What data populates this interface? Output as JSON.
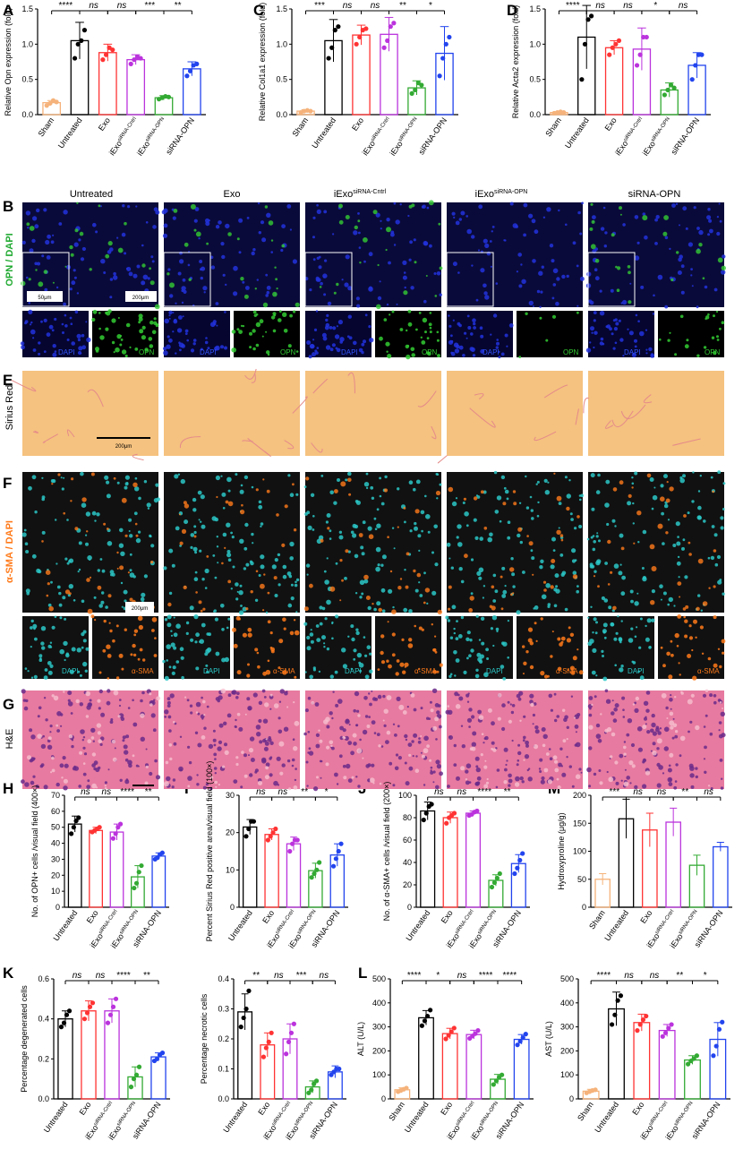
{
  "colors": {
    "sham": "#f5b27a",
    "untreated": "#000000",
    "exo": "#ff3333",
    "ictrl": "#bb33dd",
    "iopn": "#33aa33",
    "sirna": "#2244ee"
  },
  "letters": {
    "A": "A",
    "B": "B",
    "C": "C",
    "D": "D",
    "E": "E",
    "F": "F",
    "G": "G",
    "H": "H",
    "I": "I",
    "J": "J",
    "K": "K",
    "L": "L",
    "M": "M"
  },
  "images": {
    "columns": [
      "Untreated",
      "Exo",
      "iExo",
      "iExo",
      "siRNA-OPN"
    ],
    "column_sups": [
      "",
      "",
      "siRNA-Cntrl",
      "siRNA-OPN",
      ""
    ],
    "row_labels": {
      "B": "OPN / DAPI",
      "E": "Sirius Red",
      "F": "α-SMA / DAPI",
      "G": "H&E"
    },
    "small_labels_B": [
      "DAPI",
      "OPN"
    ],
    "small_labels_F": [
      "DAPI",
      "α-SMA"
    ],
    "scale_B_inset": "50μm",
    "scale_B": "200μm",
    "scale_E": "200μm",
    "scale_F": "200μm"
  },
  "chart_data": [
    {
      "id": "A",
      "type": "bar",
      "ylabel": "Relative Opn expression (fold)",
      "ylim": [
        0,
        1.5
      ],
      "yticks": [
        0.0,
        0.5,
        1.0,
        1.5
      ],
      "categories": [
        "Sham",
        "Untreated",
        "Exo",
        "iExo siRNA-Cntrl",
        "iExo siRNA-OPN",
        "siRNA-OPN"
      ],
      "values": [
        0.17,
        1.05,
        0.88,
        0.78,
        0.24,
        0.65
      ],
      "errors": [
        0.03,
        0.26,
        0.12,
        0.07,
        0.03,
        0.1
      ],
      "points": [
        [
          0.13,
          0.16,
          0.2,
          0.18
        ],
        [
          0.8,
          1.0,
          1.05,
          1.2
        ],
        [
          0.78,
          0.85,
          0.95,
          0.92
        ],
        [
          0.72,
          0.78,
          0.82,
          0.8
        ],
        [
          0.22,
          0.24,
          0.26,
          0.25
        ],
        [
          0.55,
          0.62,
          0.7,
          0.72
        ]
      ],
      "significance": [
        "****",
        "ns",
        "ns",
        "***",
        "**"
      ]
    },
    {
      "id": "C",
      "type": "bar",
      "ylabel": "Relative Col1a1 expression (fold)",
      "ylim": [
        0,
        1.5
      ],
      "yticks": [
        0.0,
        0.5,
        1.0,
        1.5
      ],
      "categories": [
        "Sham",
        "Untreated",
        "Exo",
        "iExo siRNA-Cntrl",
        "iExo siRNA-OPN",
        "siRNA-OPN"
      ],
      "values": [
        0.05,
        1.05,
        1.13,
        1.14,
        0.38,
        0.87
      ],
      "errors": [
        0.02,
        0.3,
        0.14,
        0.24,
        0.1,
        0.38
      ],
      "points": [
        [
          0.03,
          0.05,
          0.06,
          0.05
        ],
        [
          0.8,
          0.95,
          1.2,
          1.25
        ],
        [
          1.0,
          1.1,
          1.2,
          1.22
        ],
        [
          0.95,
          1.05,
          1.25,
          1.3
        ],
        [
          0.3,
          0.35,
          0.45,
          0.42
        ],
        [
          0.55,
          0.8,
          1.0,
          1.1
        ]
      ],
      "significance": [
        "***",
        "ns",
        "ns",
        "**",
        "*"
      ]
    },
    {
      "id": "D",
      "type": "bar",
      "ylabel": "Relative Acta2 expression (fold)",
      "ylim": [
        0,
        1.5
      ],
      "yticks": [
        0.0,
        0.5,
        1.0,
        1.5
      ],
      "categories": [
        "Sham",
        "Untreated",
        "Exo",
        "iExo siRNA-Cntrl",
        "iExo siRNA-OPN",
        "siRNA-OPN"
      ],
      "values": [
        0.03,
        1.1,
        0.95,
        0.93,
        0.35,
        0.7
      ],
      "errors": [
        0.01,
        0.45,
        0.1,
        0.3,
        0.1,
        0.18
      ],
      "points": [
        [
          0.02,
          0.03,
          0.04,
          0.03
        ],
        [
          0.5,
          1.0,
          1.35,
          1.4
        ],
        [
          0.85,
          0.95,
          1.0,
          1.05
        ],
        [
          0.7,
          0.85,
          1.1,
          1.1
        ],
        [
          0.28,
          0.35,
          0.42,
          0.38
        ],
        [
          0.5,
          0.7,
          0.85,
          0.85
        ]
      ],
      "significance": [
        "****",
        "ns",
        "ns",
        "*",
        "ns"
      ]
    },
    {
      "id": "H",
      "type": "bar",
      "ylabel": "No. of OPN+ cells /visual field (400×)",
      "ylim": [
        0,
        70
      ],
      "yticks": [
        0,
        10,
        20,
        30,
        40,
        50,
        60,
        70
      ],
      "categories": [
        "Untreated",
        "Exo",
        "iExo siRNA-Cntrl",
        "iExo siRNA-OPN",
        "siRNA-OPN"
      ],
      "values": [
        52,
        48,
        47,
        19,
        32
      ],
      "errors": [
        5,
        2,
        5,
        7,
        2
      ],
      "points": [
        [
          46,
          50,
          54,
          56
        ],
        [
          47,
          48,
          49,
          50
        ],
        [
          43,
          46,
          50,
          52
        ],
        [
          12,
          15,
          22,
          26
        ],
        [
          30,
          31,
          33,
          34
        ]
      ],
      "significance": [
        "ns",
        "ns",
        "****",
        "**"
      ]
    },
    {
      "id": "I",
      "type": "bar",
      "ylabel": "Percent Sirius Red positive area/visual field (100×)",
      "ylim": [
        0,
        30
      ],
      "yticks": [
        0,
        10,
        20,
        30
      ],
      "categories": [
        "Untreated",
        "Exo",
        "iExo siRNA-Cntrl",
        "iExo siRNA-OPN",
        "siRNA-OPN"
      ],
      "values": [
        21.5,
        19.5,
        17,
        9.8,
        14
      ],
      "errors": [
        2,
        1.5,
        1.8,
        2,
        3
      ],
      "points": [
        [
          19,
          21,
          23,
          23
        ],
        [
          18,
          19,
          20,
          21
        ],
        [
          15,
          17,
          18,
          18
        ],
        [
          8,
          9,
          10,
          12
        ],
        [
          11,
          13,
          15,
          17
        ]
      ],
      "significance": [
        "ns",
        "ns",
        "**",
        "*"
      ]
    },
    {
      "id": "J",
      "type": "bar",
      "ylabel": "No. of α-SMA+ cells /visual field (200×)",
      "ylim": [
        0,
        100
      ],
      "yticks": [
        0,
        20,
        40,
        60,
        80,
        100
      ],
      "categories": [
        "Untreated",
        "Exo",
        "iExo siRNA-Cntrl",
        "iExo siRNA-OPN",
        "siRNA-OPN"
      ],
      "values": [
        86,
        80,
        84,
        24,
        39
      ],
      "errors": [
        8,
        5,
        2,
        5,
        8
      ],
      "points": [
        [
          78,
          84,
          90,
          92
        ],
        [
          75,
          80,
          82,
          84
        ],
        [
          82,
          83,
          85,
          86
        ],
        [
          18,
          22,
          26,
          30
        ],
        [
          30,
          35,
          42,
          48
        ]
      ],
      "significance": [
        "ns",
        "ns",
        "****",
        "**"
      ]
    },
    {
      "id": "M",
      "type": "bar",
      "ylabel": "Hydroxyproline (μg/g)",
      "ylim": [
        0,
        200
      ],
      "yticks": [
        0,
        50,
        100,
        150,
        200
      ],
      "categories": [
        "Sham",
        "Untreated",
        "Exo",
        "iExo siRNA-Cntrl",
        "iExo siRNA-OPN",
        "siRNA-OPN"
      ],
      "values": [
        50,
        158,
        138,
        152,
        75,
        108
      ],
      "errors": [
        10,
        35,
        30,
        25,
        18,
        8
      ],
      "points": [],
      "significance": [
        "***",
        "ns",
        "ns",
        "**",
        "ns"
      ]
    },
    {
      "id": "K1",
      "type": "bar",
      "ylabel": "Percentage degenerated cells",
      "ylim": [
        0,
        0.6
      ],
      "yticks": [
        0.0,
        0.2,
        0.4,
        0.6
      ],
      "categories": [
        "Untreated",
        "Exo",
        "iExo siRNA-Cntrl",
        "iExo siRNA-OPN",
        "siRNA-OPN"
      ],
      "values": [
        0.4,
        0.44,
        0.44,
        0.11,
        0.21
      ],
      "errors": [
        0.04,
        0.05,
        0.06,
        0.05,
        0.02
      ],
      "points": [
        [
          0.36,
          0.38,
          0.42,
          0.44
        ],
        [
          0.4,
          0.43,
          0.46,
          0.48
        ],
        [
          0.38,
          0.42,
          0.46,
          0.5
        ],
        [
          0.06,
          0.1,
          0.12,
          0.16
        ],
        [
          0.19,
          0.2,
          0.22,
          0.23
        ]
      ],
      "significance": [
        "ns",
        "ns",
        "****",
        "**"
      ]
    },
    {
      "id": "K2",
      "type": "bar",
      "ylabel": "Percentage necrotic cells",
      "ylim": [
        0,
        0.4
      ],
      "yticks": [
        0.0,
        0.1,
        0.2,
        0.3,
        0.4
      ],
      "categories": [
        "Untreated",
        "Exo",
        "iExo siRNA-Cntrl",
        "iExo siRNA-OPN",
        "siRNA-OPN"
      ],
      "values": [
        0.29,
        0.18,
        0.2,
        0.04,
        0.09
      ],
      "errors": [
        0.06,
        0.04,
        0.05,
        0.02,
        0.02
      ],
      "points": [
        [
          0.24,
          0.27,
          0.3,
          0.36
        ],
        [
          0.14,
          0.17,
          0.19,
          0.22
        ],
        [
          0.15,
          0.19,
          0.22,
          0.25
        ],
        [
          0.02,
          0.03,
          0.05,
          0.06
        ],
        [
          0.08,
          0.09,
          0.1,
          0.1
        ]
      ],
      "significance": [
        "**",
        "ns",
        "***",
        "ns"
      ]
    },
    {
      "id": "L1",
      "type": "bar",
      "ylabel": "ALT (U/L)",
      "ylim": [
        0,
        500
      ],
      "yticks": [
        0,
        100,
        200,
        300,
        400,
        500
      ],
      "categories": [
        "Sham",
        "Untreated",
        "Exo",
        "iExo siRNA-Cntrl",
        "iExo siRNA-OPN",
        "siRNA-OPN"
      ],
      "values": [
        38,
        338,
        272,
        268,
        82,
        248
      ],
      "errors": [
        8,
        30,
        22,
        18,
        20,
        20
      ],
      "points": [
        [
          30,
          35,
          40,
          45
        ],
        [
          305,
          325,
          345,
          370
        ],
        [
          250,
          265,
          280,
          295
        ],
        [
          252,
          262,
          272,
          285
        ],
        [
          60,
          75,
          90,
          100
        ],
        [
          225,
          240,
          255,
          270
        ]
      ],
      "significance": [
        "****",
        "*",
        "ns",
        "****",
        "****"
      ]
    },
    {
      "id": "L2",
      "type": "bar",
      "ylabel": "AST (U/L)",
      "ylim": [
        0,
        500
      ],
      "yticks": [
        0,
        100,
        200,
        300,
        400,
        500
      ],
      "categories": [
        "Sham",
        "Untreated",
        "Exo",
        "iExo siRNA-Cntrl",
        "iExo siRNA-OPN",
        "siRNA-OPN"
      ],
      "values": [
        32,
        375,
        318,
        285,
        162,
        248
      ],
      "errors": [
        8,
        70,
        35,
        25,
        18,
        70
      ],
      "points": [
        [
          25,
          30,
          35,
          38
        ],
        [
          310,
          350,
          410,
          430
        ],
        [
          285,
          310,
          330,
          345
        ],
        [
          260,
          275,
          295,
          310
        ],
        [
          145,
          158,
          168,
          180
        ],
        [
          180,
          220,
          290,
          320
        ]
      ],
      "significance": [
        "****",
        "ns",
        "ns",
        "**",
        "*"
      ]
    }
  ]
}
